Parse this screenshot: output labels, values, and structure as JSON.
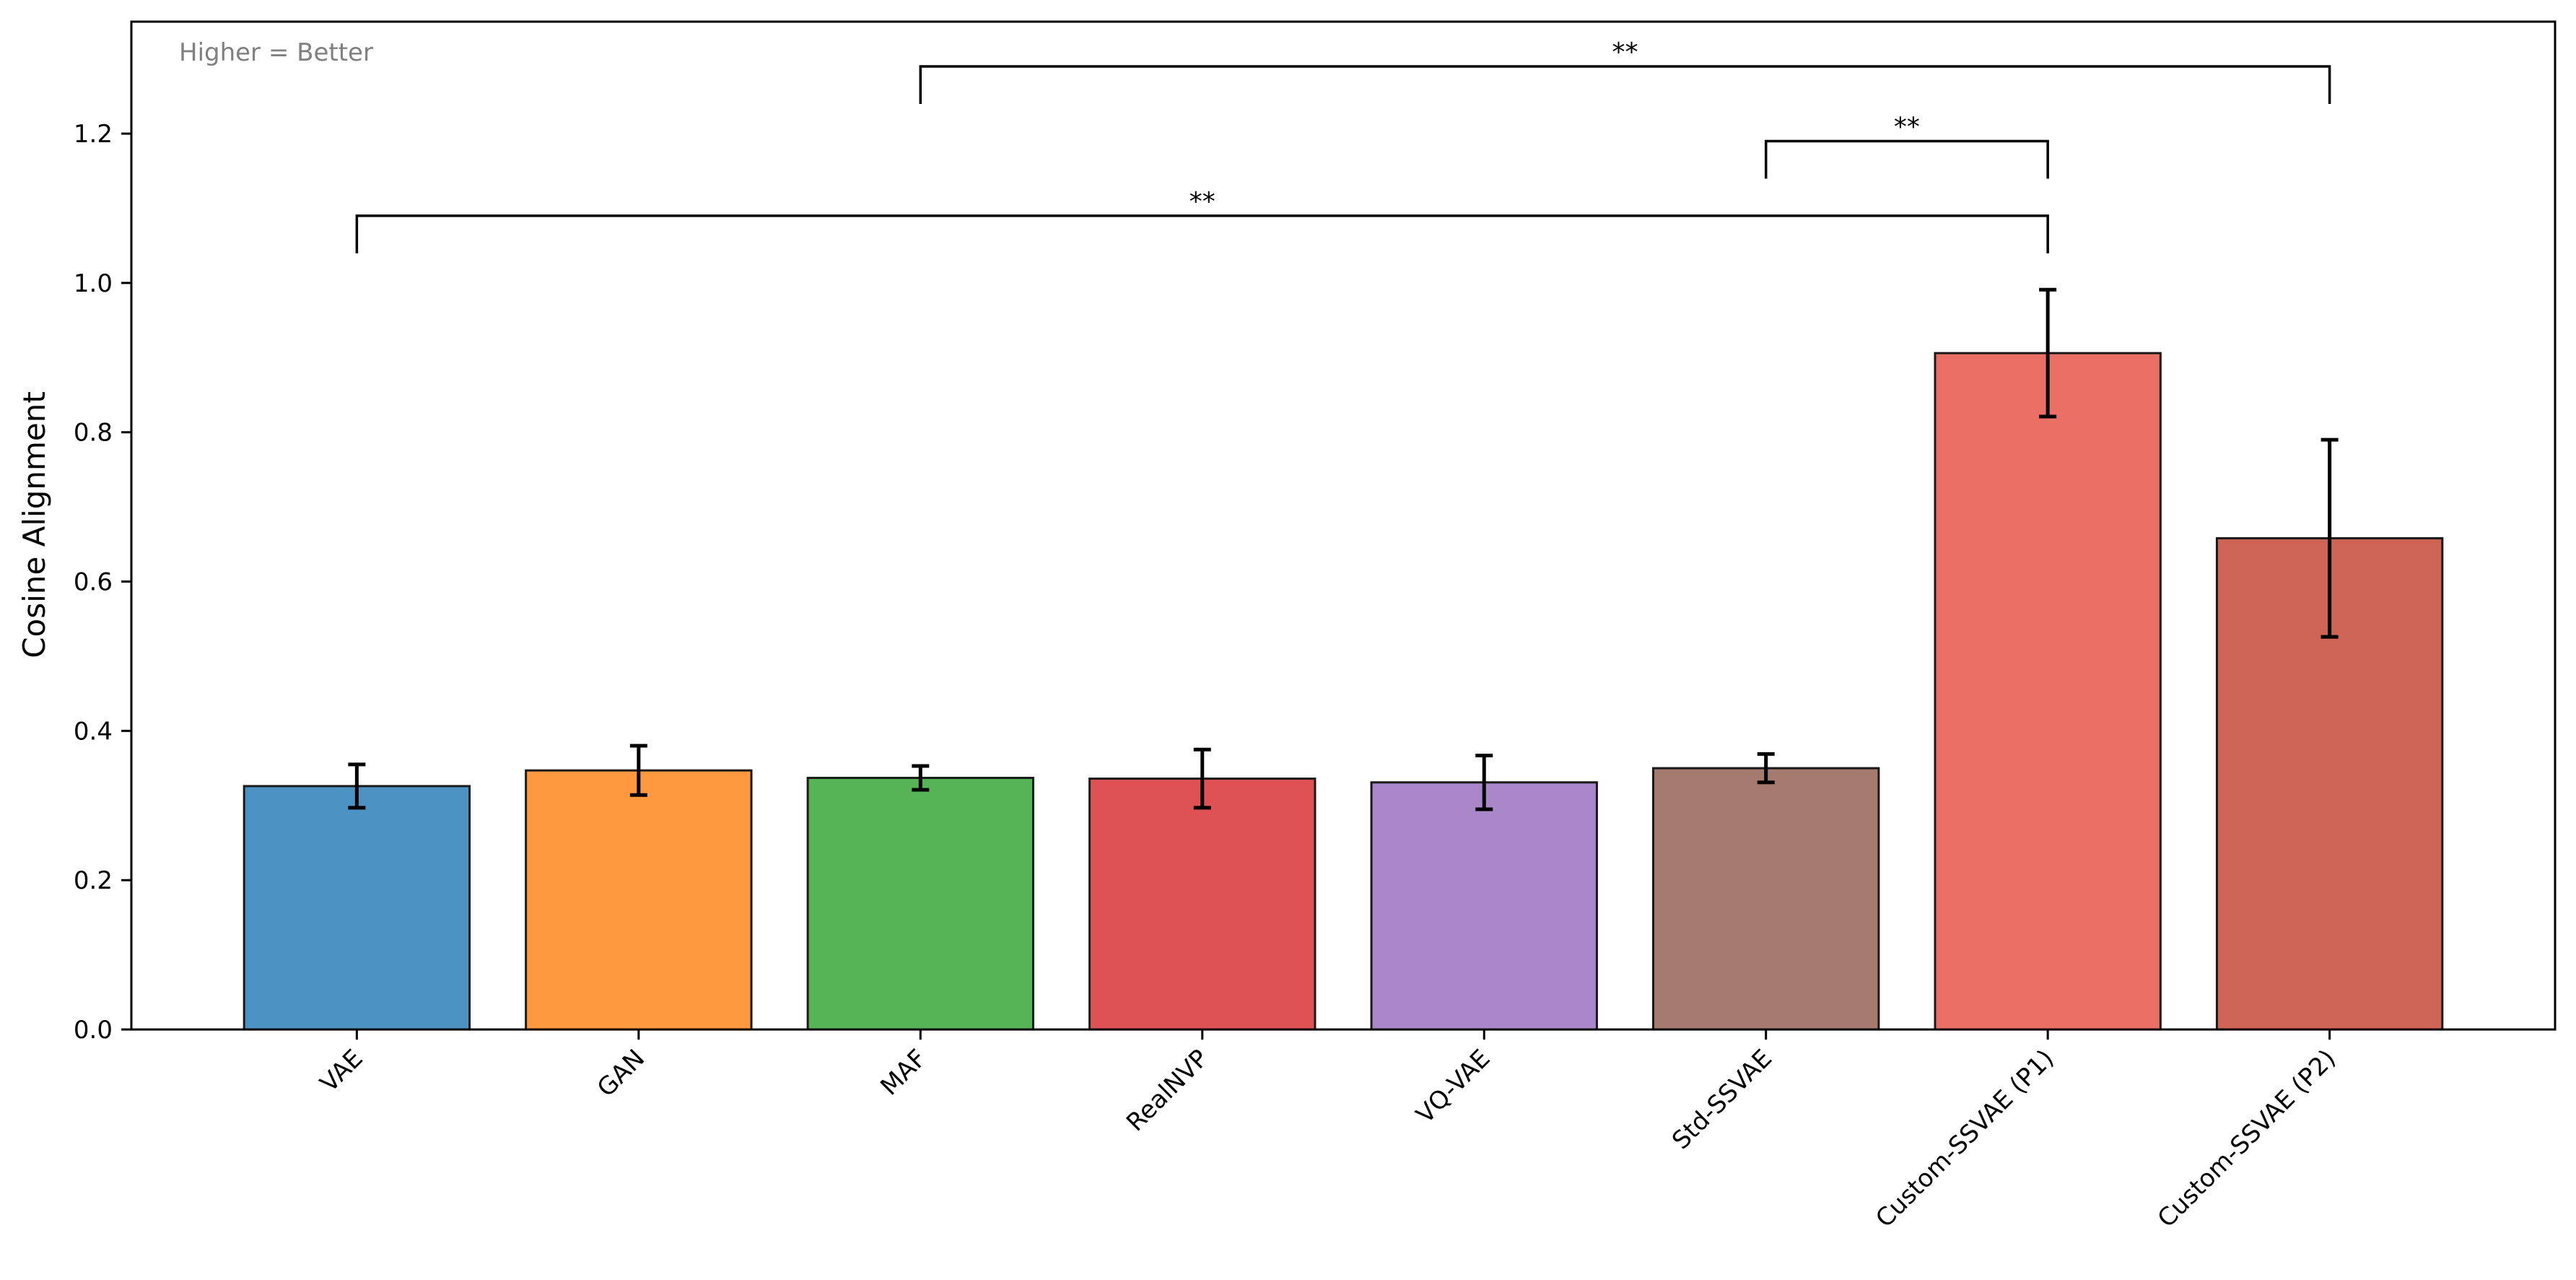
{
  "chart_data": {
    "type": "bar",
    "title": "",
    "xlabel": "",
    "ylabel": "Cosine Alignment",
    "ylim": [
      0,
      1.35
    ],
    "yticks": [
      "0.0",
      "0.2",
      "0.4",
      "0.6",
      "0.8",
      "1.0",
      "1.2"
    ],
    "grid": false,
    "annotation": "Higher = Better",
    "categories": [
      "VAE",
      "GAN",
      "MAF",
      "RealNVP",
      "VQ-VAE",
      "Std-SSVAE",
      "Custom-SSVAE (P1)",
      "Custom-SSVAE (P2)"
    ],
    "values": [
      0.326,
      0.347,
      0.337,
      0.336,
      0.331,
      0.35,
      0.906,
      0.658
    ],
    "errors": [
      0.029,
      0.033,
      0.016,
      0.039,
      0.036,
      0.019,
      0.085,
      0.132
    ],
    "colors": [
      "#4c92c3",
      "#ff993f",
      "#56b356",
      "#df5253",
      "#a987c8",
      "#a57a6f",
      "#ea6f64",
      "#cd6455"
    ],
    "significance": [
      {
        "from": "MAF",
        "to": "Custom-SSVAE (P2)",
        "label": "**",
        "y": 1.29
      },
      {
        "from": "Std-SSVAE",
        "to": "Custom-SSVAE (P1)",
        "label": "**",
        "y": 1.19
      },
      {
        "from": "VAE",
        "to": "Custom-SSVAE (P1)",
        "label": "**",
        "y": 1.09
      }
    ]
  }
}
